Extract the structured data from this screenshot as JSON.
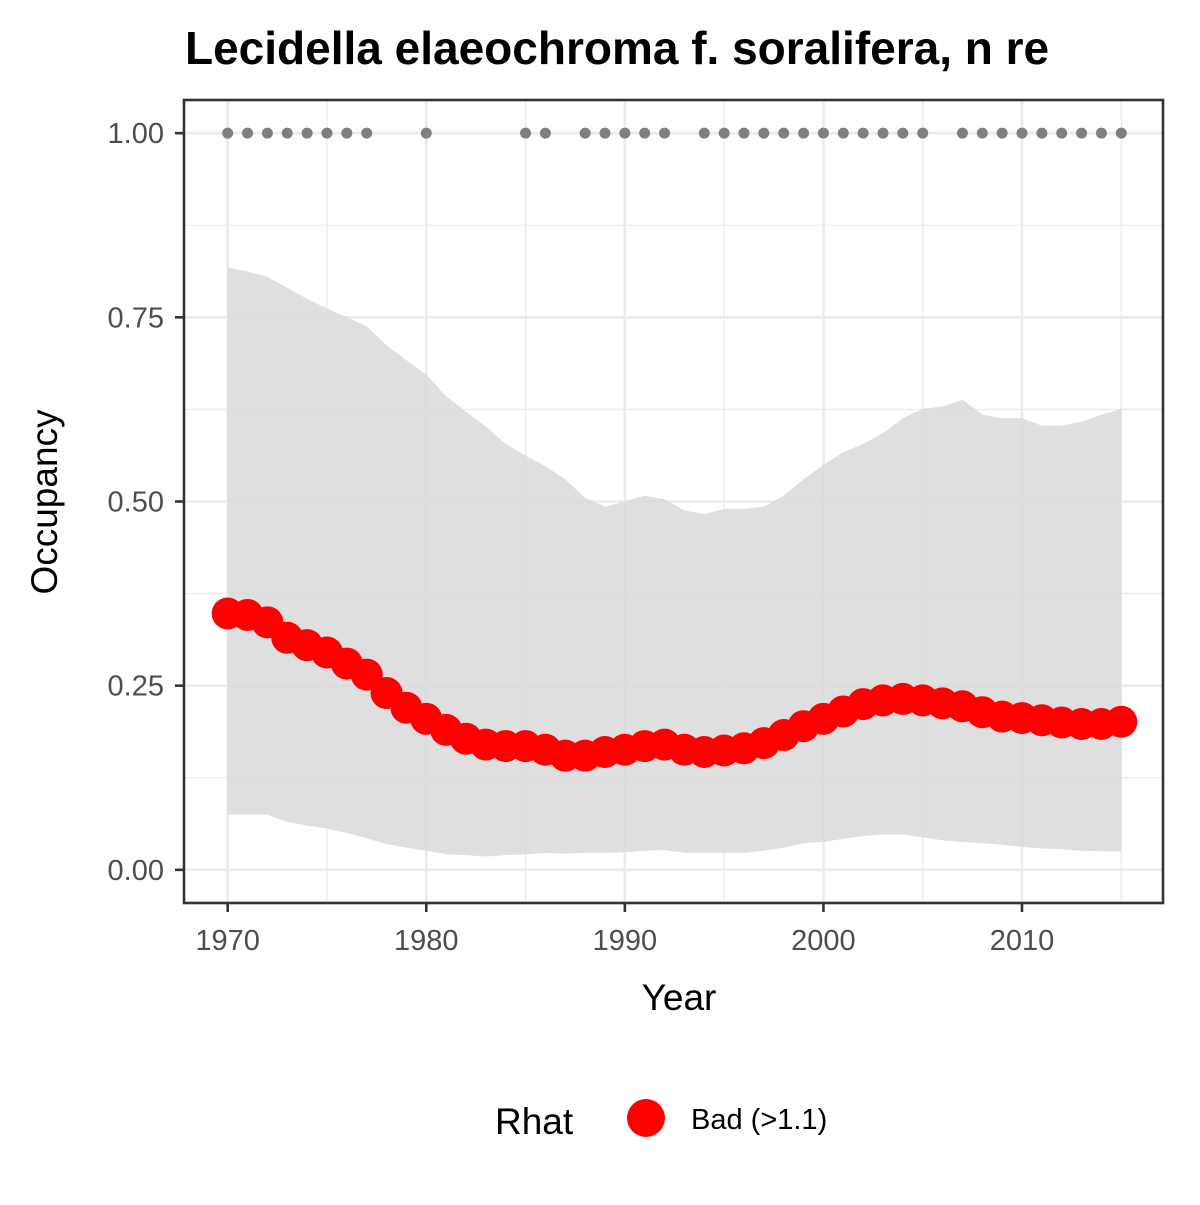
{
  "chart_data": {
    "type": "line",
    "title": "Lecidella elaeochroma f. soralifera, n re",
    "xlabel": "Year",
    "ylabel": "Occupancy",
    "xlim": [
      1967.8,
      2017.1
    ],
    "ylim": [
      -0.045,
      1.045
    ],
    "x_ticks": [
      1970,
      1980,
      1990,
      2000,
      2010
    ],
    "x_tick_labels": [
      "1970",
      "1980",
      "1990",
      "2000",
      "2010"
    ],
    "y_ticks": [
      0,
      0.25,
      0.5,
      0.75,
      1.0
    ],
    "y_tick_labels": [
      "0.00",
      "0.25",
      "0.50",
      "0.75",
      "1.00"
    ],
    "grid": true,
    "x": [
      1970,
      1971,
      1972,
      1973,
      1974,
      1975,
      1976,
      1977,
      1978,
      1979,
      1980,
      1981,
      1982,
      1983,
      1984,
      1985,
      1986,
      1987,
      1988,
      1989,
      1990,
      1991,
      1992,
      1993,
      1994,
      1995,
      1996,
      1997,
      1998,
      1999,
      2000,
      2001,
      2002,
      2003,
      2004,
      2005,
      2006,
      2007,
      2008,
      2009,
      2010,
      2011,
      2012,
      2013,
      2014,
      2015
    ],
    "series": [
      {
        "name": "Bad (>1.1)",
        "color": "#ff0000",
        "values": [
          0.348,
          0.346,
          0.336,
          0.315,
          0.305,
          0.295,
          0.28,
          0.265,
          0.24,
          0.22,
          0.205,
          0.19,
          0.178,
          0.17,
          0.168,
          0.168,
          0.163,
          0.155,
          0.155,
          0.16,
          0.163,
          0.168,
          0.17,
          0.163,
          0.16,
          0.162,
          0.165,
          0.172,
          0.183,
          0.195,
          0.205,
          0.215,
          0.225,
          0.23,
          0.232,
          0.23,
          0.226,
          0.222,
          0.214,
          0.208,
          0.206,
          0.203,
          0.2,
          0.198,
          0.198,
          0.201
        ]
      }
    ],
    "ci_upper": [
      0.818,
      0.812,
      0.805,
      0.79,
      0.775,
      0.762,
      0.75,
      0.738,
      0.712,
      0.692,
      0.672,
      0.643,
      0.622,
      0.602,
      0.578,
      0.562,
      0.548,
      0.53,
      0.505,
      0.493,
      0.5,
      0.508,
      0.503,
      0.488,
      0.483,
      0.49,
      0.49,
      0.493,
      0.508,
      0.53,
      0.55,
      0.567,
      0.578,
      0.593,
      0.613,
      0.626,
      0.629,
      0.638,
      0.618,
      0.613,
      0.613,
      0.603,
      0.603,
      0.608,
      0.618,
      0.626
    ],
    "ci_lower": [
      0.075,
      0.075,
      0.075,
      0.065,
      0.06,
      0.056,
      0.05,
      0.043,
      0.035,
      0.03,
      0.026,
      0.021,
      0.02,
      0.018,
      0.02,
      0.021,
      0.023,
      0.022,
      0.023,
      0.023,
      0.024,
      0.026,
      0.027,
      0.023,
      0.023,
      0.023,
      0.023,
      0.026,
      0.03,
      0.036,
      0.038,
      0.042,
      0.046,
      0.048,
      0.048,
      0.044,
      0.04,
      0.038,
      0.036,
      0.034,
      0.031,
      0.029,
      0.028,
      0.026,
      0.025,
      0.025
    ],
    "ci_color": "#d9d9d9",
    "observed": {
      "color": "#7f7f7f",
      "value": 1.0,
      "years": [
        1970,
        1971,
        1972,
        1973,
        1974,
        1975,
        1976,
        1977,
        1980,
        1985,
        1986,
        1988,
        1989,
        1990,
        1991,
        1992,
        1994,
        1995,
        1996,
        1997,
        1998,
        1999,
        2000,
        2001,
        2002,
        2003,
        2004,
        2005,
        2007,
        2008,
        2009,
        2010,
        2011,
        2012,
        2013,
        2014,
        2015
      ]
    },
    "legend": {
      "title": "Rhat",
      "position": "bottom",
      "items": [
        {
          "label": "Bad (>1.1)",
          "color": "#ff0000"
        }
      ]
    }
  }
}
